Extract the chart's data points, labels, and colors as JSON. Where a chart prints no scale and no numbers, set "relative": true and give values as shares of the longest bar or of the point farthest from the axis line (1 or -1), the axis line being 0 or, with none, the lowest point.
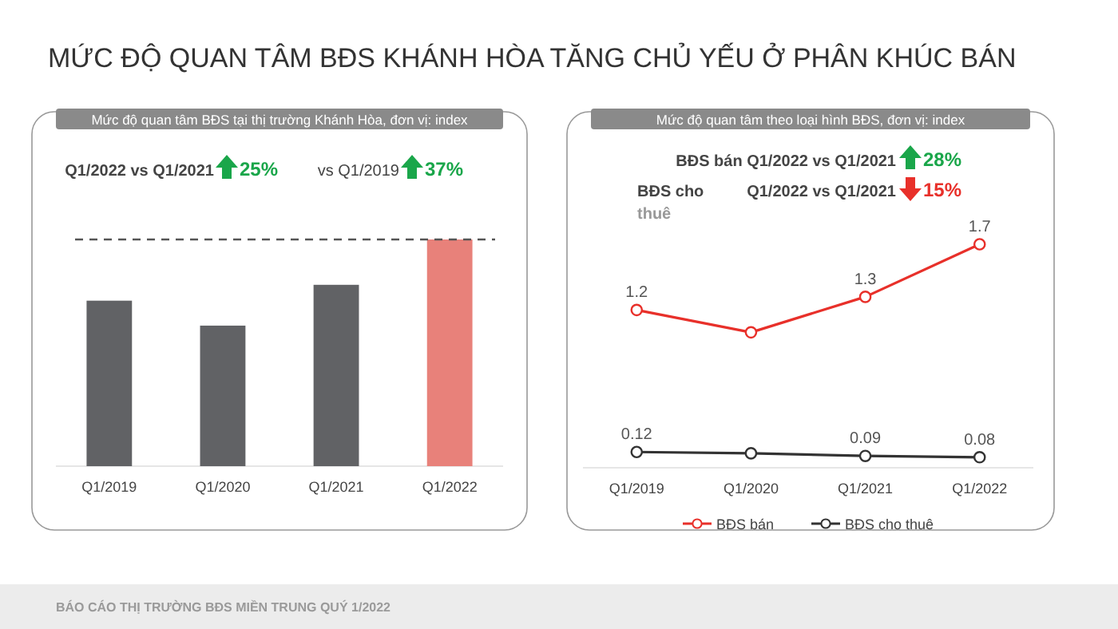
{
  "chart_data": [
    {
      "type": "bar",
      "title": "MỨC ĐỘ QUAN TÂM BĐS KHÁNH HÒA TĂNG CHỦ YẾU Ở PHÂN KHÚC BÁN",
      "subtitle": "Mức độ quan tâm BĐS tại thị trường Khánh Hòa, đơn vị: index",
      "categories": [
        "Q1/2019",
        "Q1/2020",
        "Q1/2021",
        "Q1/2022"
      ],
      "relative": true,
      "tick_labels": "x",
      "values": [
        0.73,
        0.62,
        0.8,
        1
      ],
      "colors": [
        "#616265",
        "#616265",
        "#616265",
        "#e8817a"
      ],
      "ref_lines": [
        {
          "axis": "y",
          "value": 1,
          "color": "#555555",
          "line_style": "dashed"
        }
      ],
      "annotations": [
        "Q1/2022 vs Q1/2021",
        "25%",
        "vs Q1/2019",
        "37%"
      ]
    },
    {
      "type": "line",
      "subtitle": "Mức độ quan tâm theo loại hình BĐS, đơn vị: index",
      "categories": [
        "Q1/2019",
        "Q1/2020",
        "Q1/2021",
        "Q1/2022"
      ],
      "tick_labels": "x",
      "marker": "circle",
      "legend": "bottom",
      "series": [
        {
          "name": "BĐS bán",
          "color": "#e8302a",
          "values": [
            1.2,
            1.03,
            1.3,
            1.7
          ],
          "value_labels": [
            "1.2",
            null,
            "1.3",
            "1.7"
          ]
        },
        {
          "name": "BĐS cho thuê",
          "color": "#333333",
          "values": [
            0.12,
            0.11,
            0.09,
            0.08
          ],
          "value_labels": [
            "0.12",
            null,
            "0.09",
            "0.08"
          ]
        }
      ],
      "annotations": [
        "BĐS bán Q1/2022 vs Q1/2021",
        "28%",
        "BĐS cho thuê",
        "Q1/2022 vs Q1/2021",
        "15%",
        "BÁO CÁO THỊ TRƯỜNG BĐS MIỀN TRUNG QUÝ 1/2022"
      ]
    }
  ]
}
